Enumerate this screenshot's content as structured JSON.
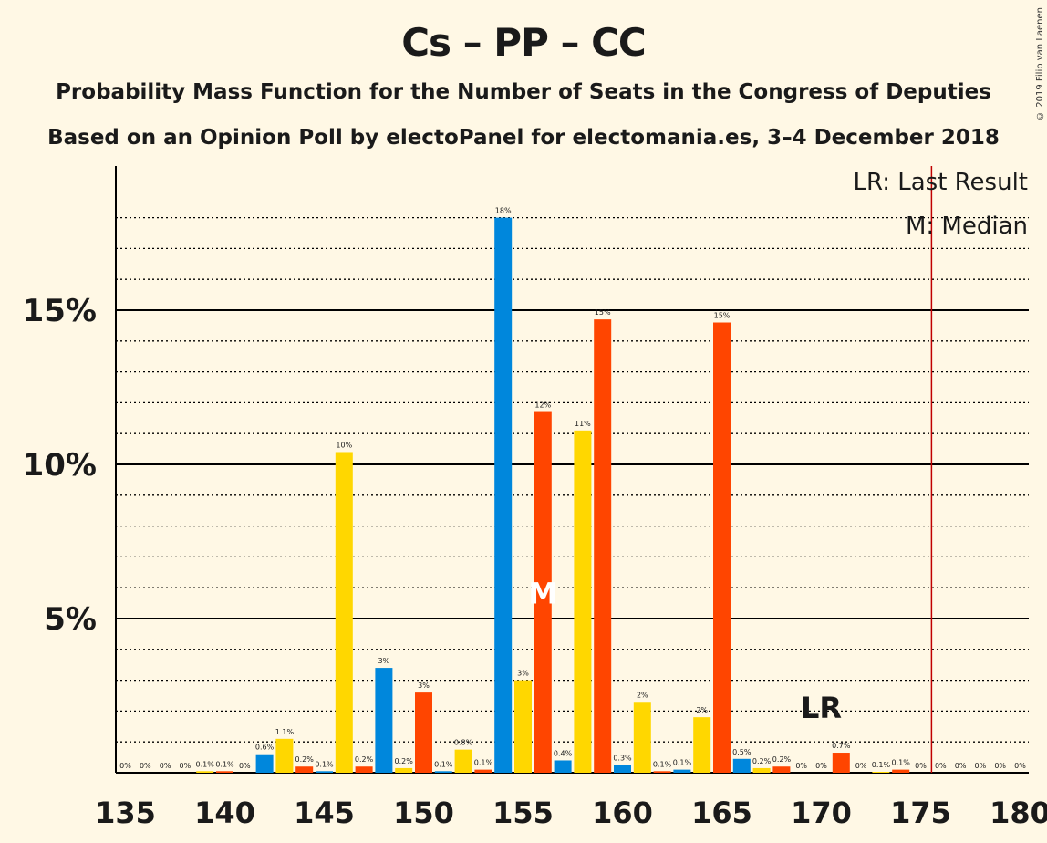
{
  "header": {
    "title": "Cs – PP – CC",
    "subtitle1": "Probability Mass Function for the Number of Seats in the Congress of Deputies",
    "subtitle2": "Based on an Opinion Poll by electoPanel for electomania.es, 3–4 December 2018",
    "credit": "© 2019 Filip van Laenen"
  },
  "legend": {
    "lr": "LR: Last Result",
    "m": "M: Median"
  },
  "colors": {
    "blue": "#0087DC",
    "yellow": "#FFD700",
    "orange": "#FF4500",
    "background": "#FFF8E5",
    "majority_line": "#C00000"
  },
  "chart_data": {
    "type": "bar",
    "x_label_ticks": [
      135,
      140,
      145,
      150,
      155,
      160,
      165,
      170,
      175,
      180
    ],
    "y_ticks": [
      "5%",
      "10%",
      "15%"
    ],
    "y_tick_values": [
      5,
      10,
      15
    ],
    "ylim": [
      0,
      19
    ],
    "xlim": [
      134.5,
      180.5
    ],
    "majority_line_x": 176,
    "median_seat": 156,
    "median_marker": "M",
    "last_result_seat": 170,
    "last_result_marker": "LR",
    "bars": [
      {
        "seat": 135,
        "value": 0,
        "label": "0%",
        "color": "blue"
      },
      {
        "seat": 136,
        "value": 0,
        "label": "0%",
        "color": "yellow"
      },
      {
        "seat": 137,
        "value": 0,
        "label": "0%",
        "color": "orange"
      },
      {
        "seat": 138,
        "value": 0,
        "label": "0%",
        "color": "blue"
      },
      {
        "seat": 139,
        "value": 0.05,
        "label": "0.1%",
        "color": "yellow"
      },
      {
        "seat": 140,
        "value": 0.05,
        "label": "0.1%",
        "color": "orange"
      },
      {
        "seat": 141,
        "value": 0,
        "label": "0%",
        "color": "blue"
      },
      {
        "seat": 142,
        "value": 0.6,
        "label": "0.6%",
        "color": "blue"
      },
      {
        "seat": 143,
        "value": 1.1,
        "label": "1.1%",
        "color": "yellow"
      },
      {
        "seat": 144,
        "value": 0.2,
        "label": "0.2%",
        "color": "orange"
      },
      {
        "seat": 145,
        "value": 0.05,
        "label": "0.1%",
        "color": "blue"
      },
      {
        "seat": 146,
        "value": 10.4,
        "label": "10%",
        "color": "yellow"
      },
      {
        "seat": 147,
        "value": 0.2,
        "label": "0.2%",
        "color": "orange"
      },
      {
        "seat": 148,
        "value": 3.4,
        "label": "3%",
        "color": "blue"
      },
      {
        "seat": 149,
        "value": 0.15,
        "label": "0.2%",
        "color": "yellow"
      },
      {
        "seat": 150,
        "value": 2.6,
        "label": "3%",
        "color": "orange"
      },
      {
        "seat": 151,
        "value": 0.05,
        "label": "0.1%",
        "color": "blue"
      },
      {
        "seat": 152,
        "value": 0.75,
        "label": "0.8%",
        "color": "yellow"
      },
      {
        "seat": 153,
        "value": 0.1,
        "label": "0.1%",
        "color": "orange"
      },
      {
        "seat": 154,
        "value": 18.0,
        "label": "18%",
        "color": "blue"
      },
      {
        "seat": 155,
        "value": 3.0,
        "label": "3%",
        "color": "yellow"
      },
      {
        "seat": 156,
        "value": 11.7,
        "label": "12%",
        "color": "orange"
      },
      {
        "seat": 157,
        "value": 0.4,
        "label": "0.4%",
        "color": "blue"
      },
      {
        "seat": 158,
        "value": 11.1,
        "label": "11%",
        "color": "yellow"
      },
      {
        "seat": 159,
        "value": 14.7,
        "label": "15%",
        "color": "orange"
      },
      {
        "seat": 160,
        "value": 0.25,
        "label": "0.3%",
        "color": "blue"
      },
      {
        "seat": 161,
        "value": 2.3,
        "label": "2%",
        "color": "yellow"
      },
      {
        "seat": 162,
        "value": 0.05,
        "label": "0.1%",
        "color": "orange"
      },
      {
        "seat": 163,
        "value": 0.1,
        "label": "0.1%",
        "color": "blue"
      },
      {
        "seat": 164,
        "value": 1.8,
        "label": "2%",
        "color": "yellow"
      },
      {
        "seat": 165,
        "value": 14.6,
        "label": "15%",
        "color": "orange"
      },
      {
        "seat": 166,
        "value": 0.45,
        "label": "0.5%",
        "color": "blue"
      },
      {
        "seat": 167,
        "value": 0.15,
        "label": "0.2%",
        "color": "yellow"
      },
      {
        "seat": 168,
        "value": 0.2,
        "label": "0.2%",
        "color": "orange"
      },
      {
        "seat": 169,
        "value": 0,
        "label": "0%",
        "color": "blue"
      },
      {
        "seat": 170,
        "value": 0,
        "label": "0%",
        "color": "yellow"
      },
      {
        "seat": 171,
        "value": 0.65,
        "label": "0.7%",
        "color": "orange"
      },
      {
        "seat": 172,
        "value": 0,
        "label": "0%",
        "color": "blue"
      },
      {
        "seat": 173,
        "value": 0.03,
        "label": "0.1%",
        "color": "yellow"
      },
      {
        "seat": 174,
        "value": 0.1,
        "label": "0.1%",
        "color": "orange"
      },
      {
        "seat": 175,
        "value": 0,
        "label": "0%",
        "color": "blue"
      },
      {
        "seat": 176,
        "value": 0,
        "label": "0%",
        "color": "yellow"
      },
      {
        "seat": 177,
        "value": 0,
        "label": "0%",
        "color": "orange"
      },
      {
        "seat": 178,
        "value": 0,
        "label": "0%",
        "color": "blue"
      },
      {
        "seat": 179,
        "value": 0,
        "label": "0%",
        "color": "yellow"
      },
      {
        "seat": 180,
        "value": 0,
        "label": "0%",
        "color": "orange"
      }
    ]
  }
}
